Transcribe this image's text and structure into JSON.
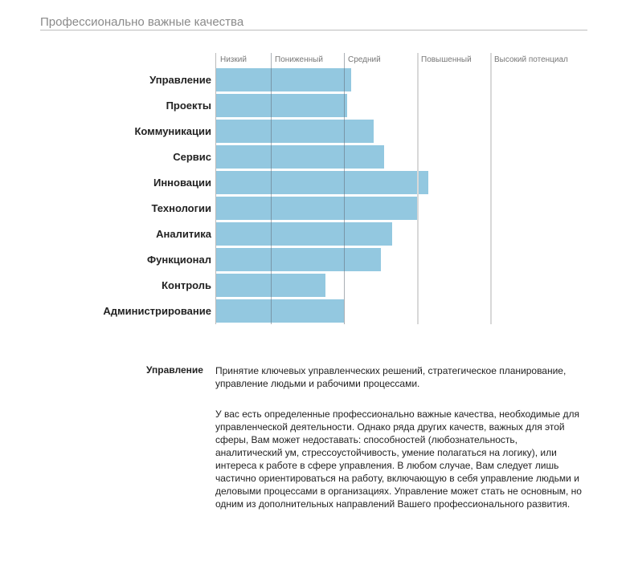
{
  "header": {
    "title": "Профессионально важные качества"
  },
  "chart_data": {
    "type": "bar",
    "orientation": "horizontal",
    "title": "Профессионально важные качества",
    "xlim": [
      0,
      100
    ],
    "bands": [
      {
        "label": "Низкий",
        "start": 0
      },
      {
        "label": "Пониженный",
        "start": 15.7
      },
      {
        "label": "Средний",
        "start": 36.8
      },
      {
        "label": "Повышенный",
        "start": 57.9
      },
      {
        "label": "Высокий потенциал",
        "start": 78.9
      }
    ],
    "categories": [
      "Управление",
      "Проекты",
      "Коммуникации",
      "Сервис",
      "Инновации",
      "Технологии",
      "Аналитика",
      "Функционал",
      "Контроль",
      "Администрирование"
    ],
    "values": [
      38.9,
      37.7,
      45.4,
      48.4,
      61.1,
      57.9,
      50.7,
      47.5,
      31.5,
      36.8
    ],
    "bar_color": "#93c8e0"
  },
  "description": {
    "label": "Управление",
    "summary_lines": [
      "Принятие ключевых управленческих решений, стратегическое планирование,",
      "управление людьми и рабочими процессами."
    ],
    "detail_lines": [
      "У вас есть определенные профессионально важные качества, необходимые для",
      "управленческой деятельности. Однако ряда других качеств, важных для этой",
      "сферы, Вам может недоставать: способностей (любознательность,",
      "аналитический ум, стрессоустойчивость, умение полагаться на логику), или",
      "интереса к работе в сфере управления. В любом случае, Вам следует лишь",
      "частично ориентироваться на работу, включающую в себя управление людьми и",
      "деловыми процессами в организациях. Управление может стать не основным, но",
      "одним из дополнительных направлений Вашего профессионального развития."
    ]
  }
}
